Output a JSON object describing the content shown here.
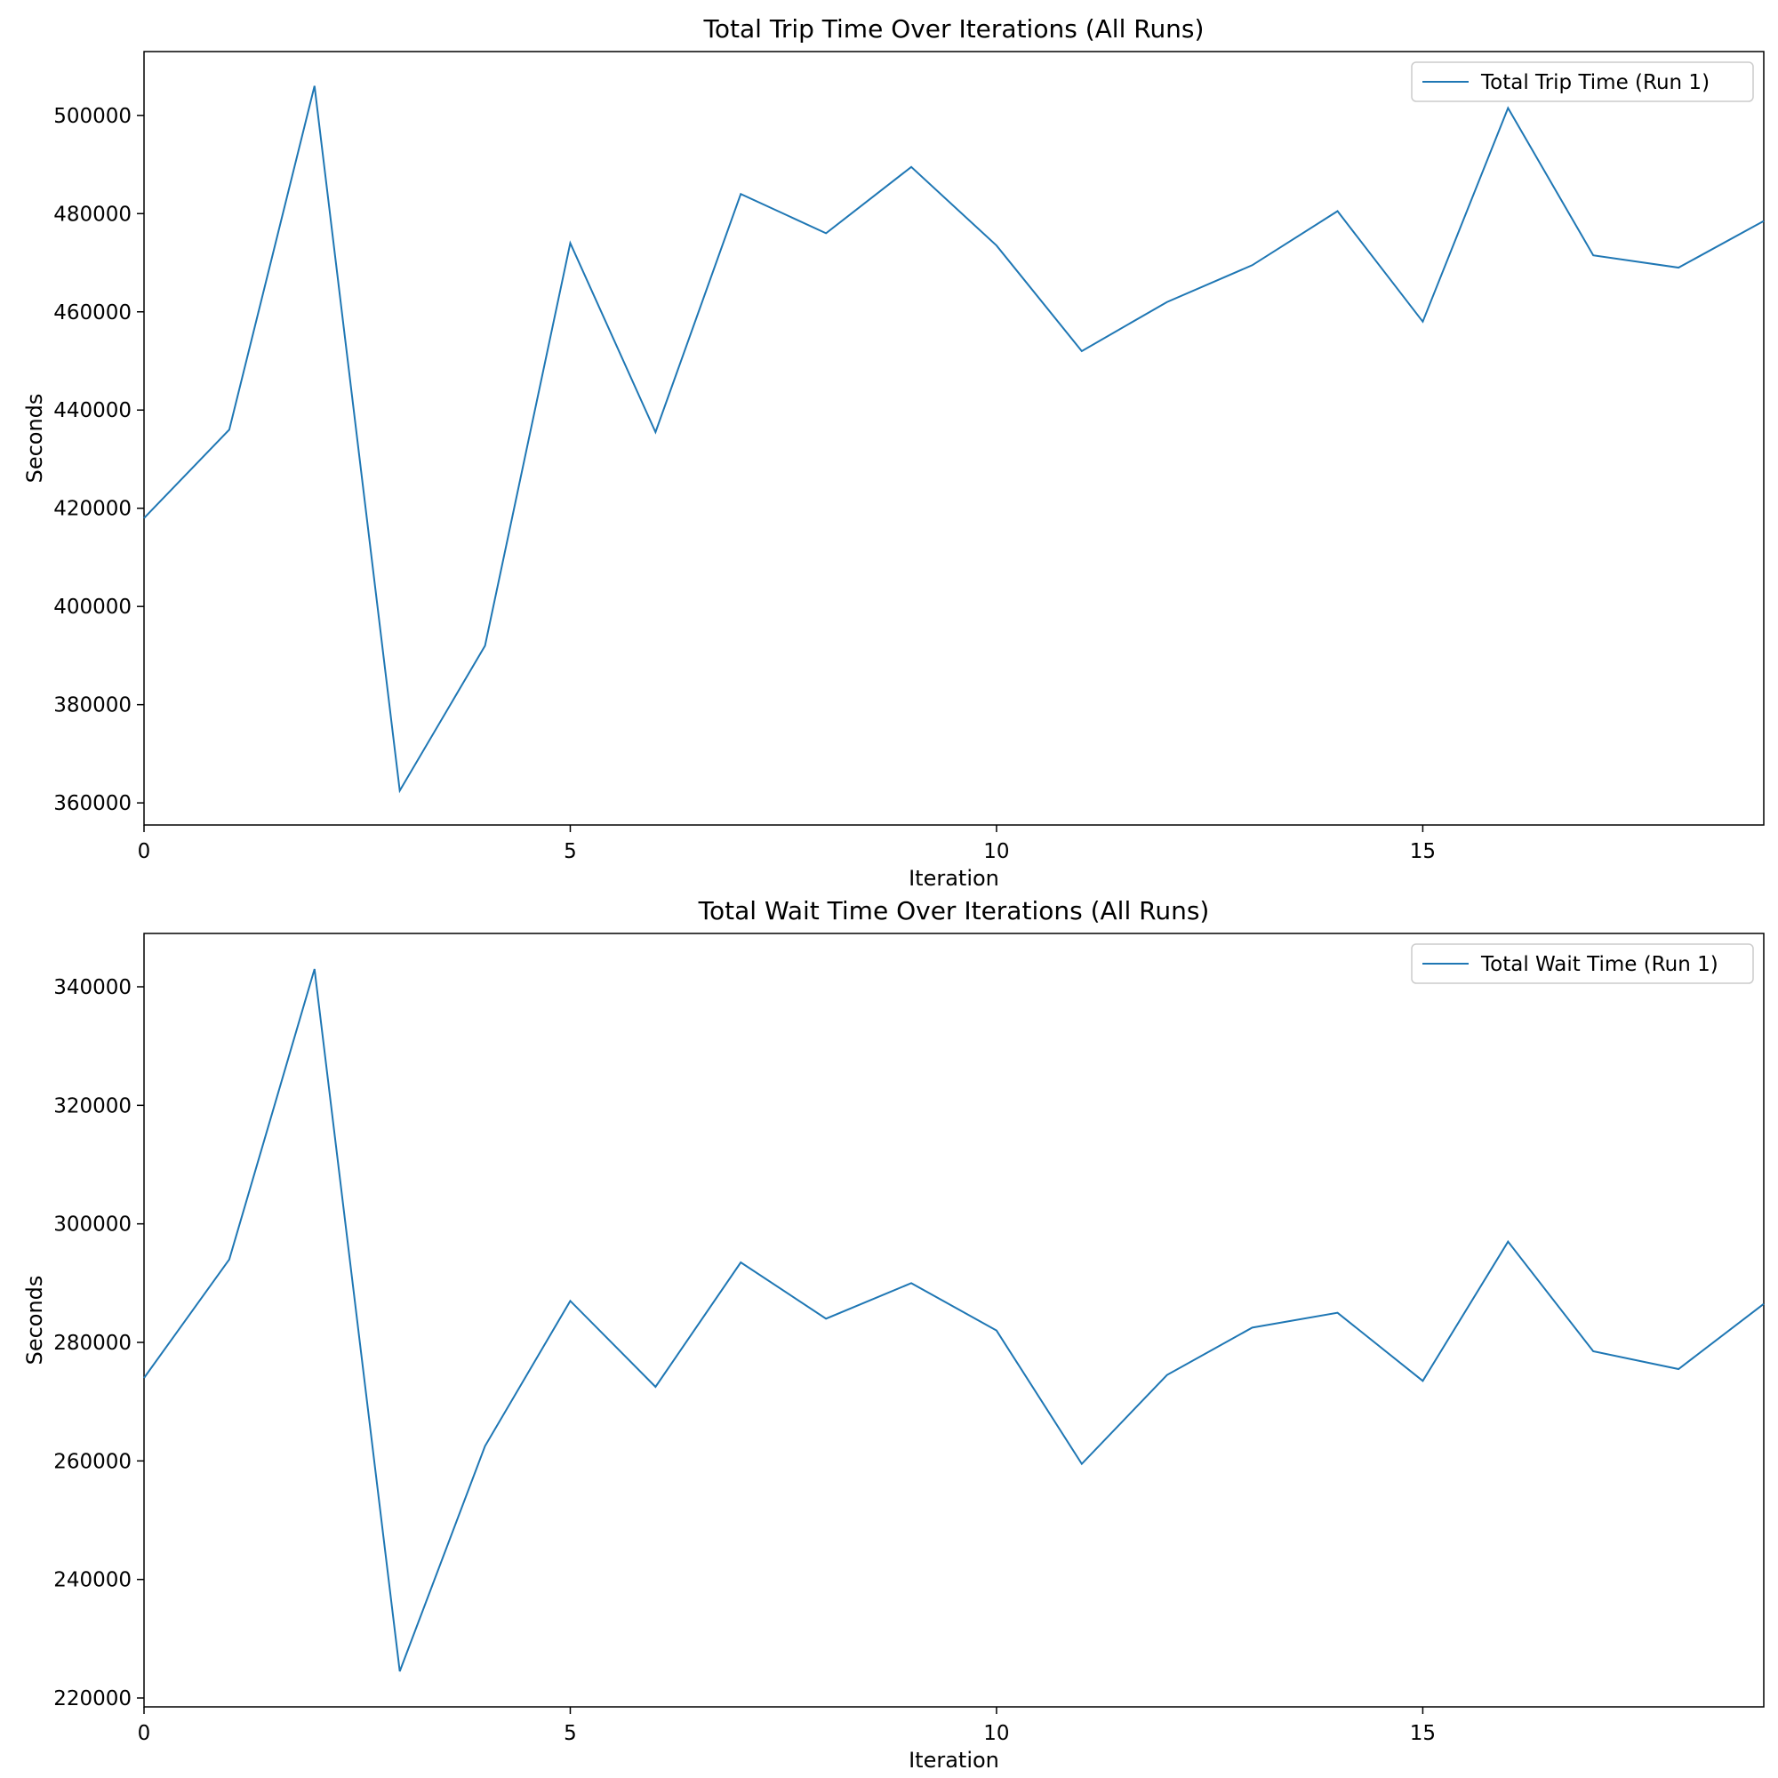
{
  "chart_data": [
    {
      "type": "line",
      "title": "Total Trip Time Over Iterations (All Runs)",
      "xlabel": "Iteration",
      "ylabel": "Seconds",
      "xlim": [
        0,
        19
      ],
      "ylim": [
        355500,
        513000
      ],
      "xticks": [
        0,
        5,
        10,
        15
      ],
      "yticks": [
        360000,
        380000,
        400000,
        420000,
        440000,
        460000,
        480000,
        500000
      ],
      "legend": "top-right",
      "grid": false,
      "x": [
        0,
        1,
        2,
        3,
        4,
        5,
        6,
        7,
        8,
        9,
        10,
        11,
        12,
        13,
        14,
        15,
        16,
        17,
        18,
        19
      ],
      "series": [
        {
          "name": "Total Trip Time (Run 1)",
          "color": "#1f77b4",
          "values": [
            418000,
            436000,
            506000,
            362500,
            392000,
            474000,
            435500,
            484000,
            476000,
            489500,
            473500,
            452000,
            462000,
            469500,
            480500,
            458000,
            501500,
            471500,
            469000,
            478500
          ]
        }
      ]
    },
    {
      "type": "line",
      "title": "Total Wait Time Over Iterations (All Runs)",
      "xlabel": "Iteration",
      "ylabel": "Seconds",
      "xlim": [
        0,
        19
      ],
      "ylim": [
        218500,
        349000
      ],
      "xticks": [
        0,
        5,
        10,
        15
      ],
      "yticks": [
        220000,
        240000,
        260000,
        280000,
        300000,
        320000,
        340000
      ],
      "legend": "top-right",
      "grid": false,
      "x": [
        0,
        1,
        2,
        3,
        4,
        5,
        6,
        7,
        8,
        9,
        10,
        11,
        12,
        13,
        14,
        15,
        16,
        17,
        18,
        19
      ],
      "series": [
        {
          "name": "Total Wait Time (Run 1)",
          "color": "#1f77b4",
          "values": [
            274000,
            294000,
            343000,
            224500,
            262500,
            287000,
            272500,
            293500,
            284000,
            290000,
            282000,
            259500,
            274500,
            282500,
            285000,
            273500,
            297000,
            278500,
            275500,
            286500
          ]
        }
      ]
    }
  ]
}
